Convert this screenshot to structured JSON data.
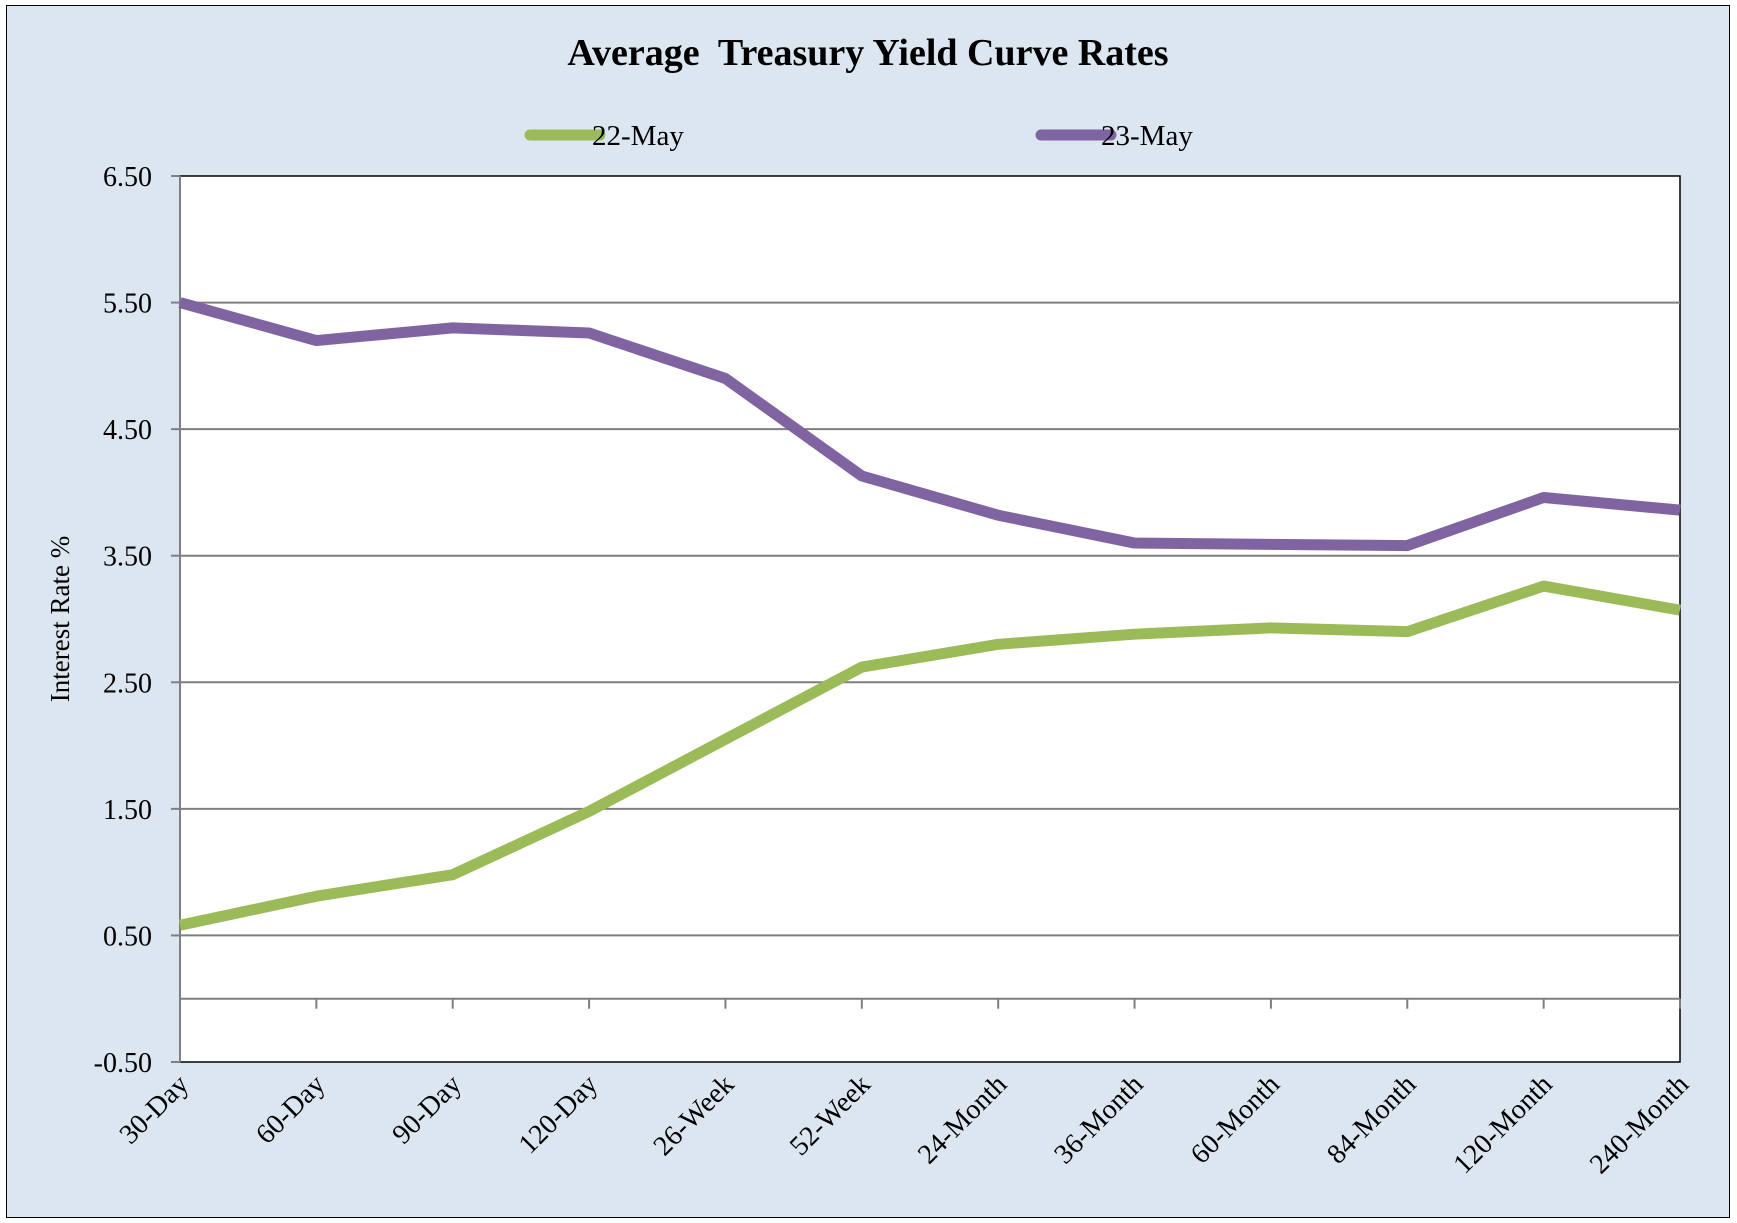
{
  "chart_data": {
    "type": "line",
    "title": "Average  Treasury Yield Curve Rates",
    "xlabel": "",
    "ylabel": "Interest Rate %",
    "categories": [
      "30-Day",
      "60-Day",
      "90-Day",
      "120-Day",
      "26-Week",
      "52-Week",
      "24-Month",
      "36-Month",
      "60-Month",
      "84-Month",
      "120-Month",
      "240-Month"
    ],
    "ylim": [
      -0.5,
      6.5
    ],
    "yticks": [
      "6.50",
      "5.50",
      "4.50",
      "3.50",
      "2.50",
      "1.50",
      "0.50",
      "-0.50"
    ],
    "grid": true,
    "legend_position": "top",
    "series": [
      {
        "name": "22-May",
        "color": "#9bbb59",
        "values": [
          0.58,
          0.81,
          0.98,
          1.48,
          2.05,
          2.62,
          2.8,
          2.88,
          2.93,
          2.9,
          3.26,
          3.07
        ]
      },
      {
        "name": "23-May",
        "color": "#8064a2",
        "values": [
          5.5,
          5.2,
          5.3,
          5.26,
          4.9,
          4.13,
          3.82,
          3.6,
          3.59,
          3.58,
          3.96,
          3.86
        ]
      }
    ]
  }
}
